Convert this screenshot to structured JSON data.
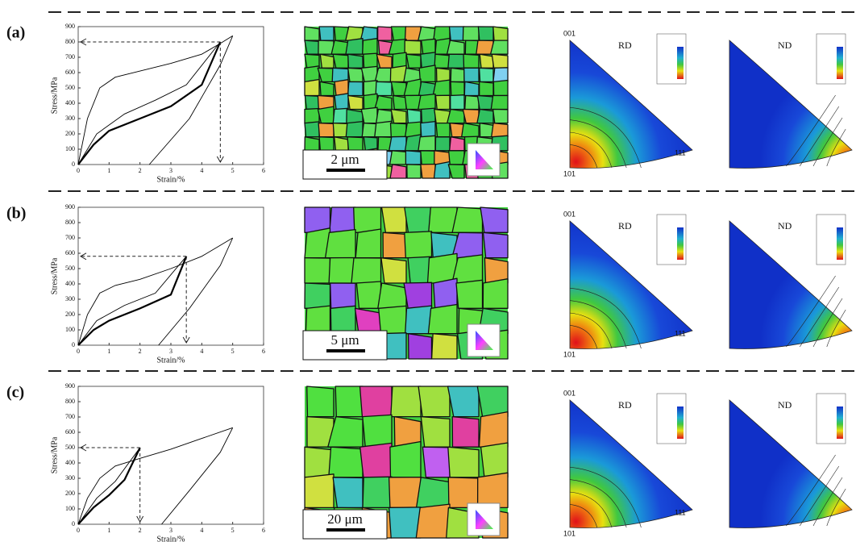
{
  "chart_data": [
    {
      "type": "line",
      "xlabel": "Strain/%",
      "ylabel": "Stress/MPa",
      "xlim": [
        0,
        6
      ],
      "ylim": [
        0,
        900
      ],
      "xticks": [
        0,
        1,
        2,
        3,
        4,
        5,
        6
      ],
      "yticks": [
        0,
        100,
        200,
        300,
        400,
        500,
        600,
        700,
        800,
        900
      ],
      "series": [
        {
          "color": "#000000",
          "x": [
            0,
            0.3,
            0.7,
            1.2,
            2,
            3,
            4,
            4.6,
            5.0
          ],
          "values": [
            0,
            300,
            500,
            570,
            610,
            660,
            720,
            790,
            840
          ]
        },
        {
          "color": "#000000",
          "x": [
            0,
            0.5,
            1,
            2,
            3,
            4,
            4.6
          ],
          "values": [
            0,
            130,
            220,
            300,
            380,
            520,
            800
          ]
        },
        {
          "color": "#000000",
          "x": [
            0,
            0.6,
            1.5,
            2.5,
            3.5,
            4.6
          ],
          "values": [
            0,
            200,
            330,
            420,
            520,
            800
          ]
        },
        {
          "color": "#000000",
          "x": [
            5.0,
            4.6,
            3.6,
            2.3
          ],
          "values": [
            840,
            650,
            300,
            0
          ]
        }
      ],
      "annotations": [
        {
          "x": 4.6,
          "y": 800
        }
      ]
    },
    {
      "type": "line",
      "xlabel": "Strain/%",
      "ylabel": "Stress/MPa",
      "xlim": [
        0,
        6
      ],
      "ylim": [
        0,
        900
      ],
      "xticks": [
        0,
        1,
        2,
        3,
        4,
        5,
        6
      ],
      "yticks": [
        0,
        100,
        200,
        300,
        400,
        500,
        600,
        700,
        800,
        900
      ],
      "series": [
        {
          "color": "#000000",
          "x": [
            0,
            0.3,
            0.7,
            1.2,
            2,
            3,
            4,
            5.0
          ],
          "values": [
            0,
            200,
            340,
            390,
            430,
            500,
            580,
            700
          ]
        },
        {
          "color": "#000000",
          "x": [
            0,
            0.5,
            1,
            2,
            3,
            3.5
          ],
          "values": [
            0,
            100,
            160,
            240,
            330,
            580
          ]
        },
        {
          "color": "#000000",
          "x": [
            0,
            0.6,
            1.5,
            2.5,
            3.5
          ],
          "values": [
            0,
            160,
            260,
            340,
            580
          ]
        },
        {
          "color": "#000000",
          "x": [
            5.0,
            4.6,
            3.6,
            2.6
          ],
          "values": [
            700,
            520,
            240,
            0
          ]
        }
      ],
      "annotations": [
        {
          "x": 3.5,
          "y": 580
        }
      ]
    },
    {
      "type": "line",
      "xlabel": "Strain/%",
      "ylabel": "Stress/MPa",
      "xlim": [
        0,
        6
      ],
      "ylim": [
        0,
        900
      ],
      "xticks": [
        0,
        1,
        2,
        3,
        4,
        5,
        6
      ],
      "yticks": [
        0,
        100,
        200,
        300,
        400,
        500,
        600,
        700,
        800,
        900
      ],
      "series": [
        {
          "color": "#000000",
          "x": [
            0,
            0.3,
            0.7,
            1.2,
            2,
            3,
            4,
            5.0
          ],
          "values": [
            0,
            170,
            300,
            380,
            430,
            490,
            560,
            630
          ]
        },
        {
          "color": "#000000",
          "x": [
            0,
            0.5,
            1,
            1.5,
            2
          ],
          "values": [
            0,
            110,
            190,
            290,
            500
          ]
        },
        {
          "color": "#000000",
          "x": [
            0,
            0.6,
            1.2,
            2
          ],
          "values": [
            0,
            170,
            280,
            500
          ]
        },
        {
          "color": "#000000",
          "x": [
            5.0,
            4.6,
            3.6,
            2.7
          ],
          "values": [
            630,
            470,
            220,
            0
          ]
        }
      ],
      "annotations": [
        {
          "x": 2,
          "y": 500
        }
      ]
    }
  ],
  "panels": [
    {
      "label": "(a)",
      "scale_bar": "2 μm",
      "ipf": [
        {
          "direction": "RD",
          "corners": [
            "001",
            "101",
            "111"
          ]
        },
        {
          "direction": "ND"
        }
      ]
    },
    {
      "label": "(b)",
      "scale_bar": "5 μm",
      "ipf": [
        {
          "direction": "RD",
          "corners": [
            "001",
            "101",
            "111"
          ]
        },
        {
          "direction": "ND"
        }
      ]
    },
    {
      "label": "(c)",
      "scale_bar": "20 μm",
      "ipf": [
        {
          "direction": "RD",
          "corners": [
            "001",
            "101",
            "111"
          ]
        },
        {
          "direction": "ND"
        }
      ]
    }
  ]
}
